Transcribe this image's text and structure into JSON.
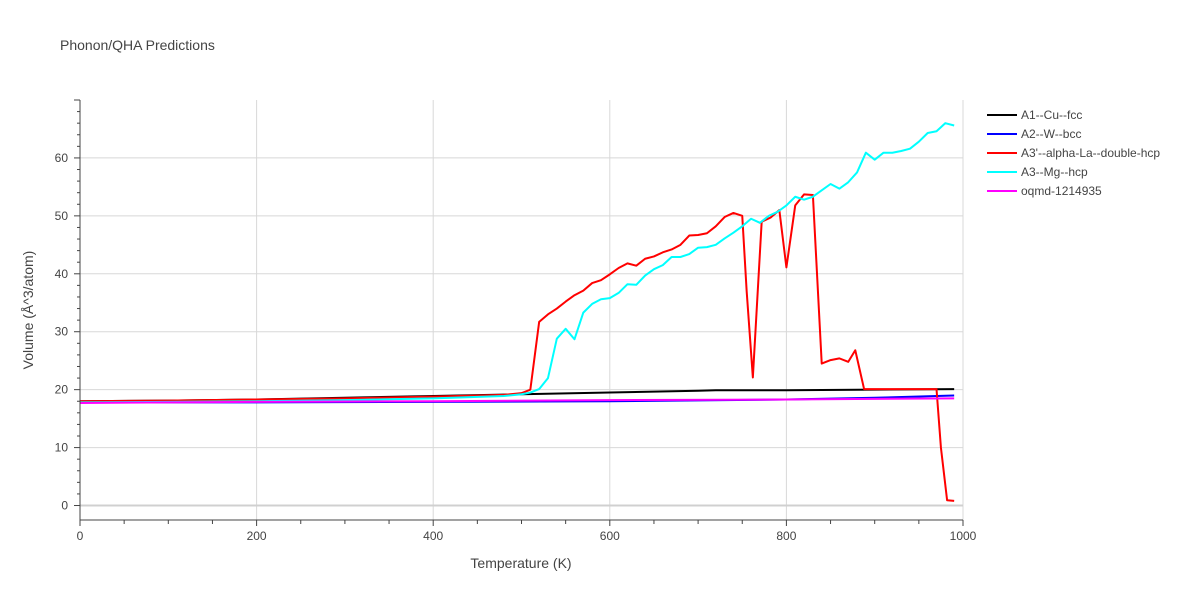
{
  "chart_data": {
    "type": "line",
    "title": "Phonon/QHA Predictions",
    "xlabel": "Temperature (K)",
    "ylabel": "Volume (Å^3/atom)",
    "xlim": [
      0,
      1000
    ],
    "ylim": [
      -2.5,
      70
    ],
    "xticks": [
      0,
      200,
      400,
      600,
      800,
      1000
    ],
    "yticks": [
      0,
      10,
      20,
      30,
      40,
      50,
      60
    ],
    "grid": true,
    "legend_position": "top-right",
    "series": [
      {
        "name": "A1--Cu--fcc",
        "color": "#000000",
        "x": [
          0,
          100,
          200,
          300,
          400,
          500,
          600,
          700,
          720,
          800,
          900,
          990
        ],
        "y": [
          18.0,
          18.1,
          18.3,
          18.6,
          18.9,
          19.2,
          19.5,
          19.8,
          19.9,
          19.9,
          20.0,
          20.1
        ]
      },
      {
        "name": "A2--W--bcc",
        "color": "#0000ff",
        "x": [
          0,
          200,
          400,
          600,
          800,
          900,
          990
        ],
        "y": [
          17.8,
          17.8,
          17.9,
          18.0,
          18.3,
          18.6,
          19.0
        ]
      },
      {
        "name": "A3'--alpha-La--double-hcp",
        "color": "#ff0000",
        "x": [
          0,
          100,
          200,
          300,
          400,
          480,
          500,
          510,
          520,
          530,
          540,
          550,
          560,
          570,
          580,
          590,
          600,
          610,
          620,
          630,
          640,
          650,
          660,
          670,
          680,
          690,
          700,
          710,
          720,
          730,
          740,
          750,
          755,
          762,
          772,
          782,
          792,
          800,
          810,
          820,
          830,
          840,
          850,
          860,
          870,
          878,
          888,
          900,
          920,
          950,
          970,
          975,
          982,
          990
        ],
        "y": [
          18.0,
          18.1,
          18.3,
          18.5,
          18.8,
          19.1,
          19.4,
          20.0,
          31.7,
          33.0,
          34.0,
          35.2,
          36.3,
          37.1,
          38.4,
          38.9,
          39.9,
          41.0,
          41.8,
          41.4,
          42.6,
          43.0,
          43.7,
          44.2,
          45.0,
          46.6,
          46.7,
          47.0,
          48.2,
          49.8,
          50.5,
          50.0,
          37.0,
          22.1,
          49.0,
          49.7,
          51.0,
          41.1,
          51.8,
          53.7,
          53.6,
          24.5,
          25.1,
          25.4,
          24.8,
          26.8,
          20.1,
          20.1,
          20.1,
          20.1,
          20.1,
          10.0,
          0.9,
          0.8
        ]
      },
      {
        "name": "A3--Mg--hcp",
        "color": "#00ffff",
        "x": [
          0,
          100,
          200,
          300,
          400,
          480,
          500,
          510,
          520,
          530,
          540,
          550,
          560,
          570,
          580,
          590,
          600,
          610,
          620,
          630,
          640,
          650,
          660,
          670,
          680,
          690,
          700,
          710,
          720,
          730,
          740,
          750,
          760,
          770,
          780,
          790,
          800,
          810,
          820,
          830,
          840,
          850,
          860,
          870,
          880,
          890,
          900,
          910,
          920,
          930,
          940,
          950,
          960,
          970,
          980,
          990
        ],
        "y": [
          17.8,
          17.9,
          18.0,
          18.2,
          18.5,
          18.9,
          19.2,
          19.5,
          20.1,
          22.0,
          28.8,
          30.5,
          28.7,
          33.3,
          34.8,
          35.6,
          35.8,
          36.7,
          38.2,
          38.1,
          39.7,
          40.8,
          41.5,
          42.9,
          42.9,
          43.4,
          44.5,
          44.6,
          45.0,
          46.1,
          47.1,
          48.2,
          49.5,
          48.8,
          50.0,
          50.7,
          51.8,
          53.3,
          52.8,
          53.3,
          54.4,
          55.5,
          54.7,
          55.8,
          57.5,
          60.9,
          59.7,
          60.9,
          60.9,
          61.2,
          61.6,
          62.8,
          64.3,
          64.6,
          66.0,
          65.6
        ]
      },
      {
        "name": "oqmd-1214935",
        "color": "#ff00ff",
        "x": [
          0,
          200,
          400,
          600,
          800,
          990
        ],
        "y": [
          17.7,
          17.9,
          18.0,
          18.2,
          18.3,
          18.5
        ]
      }
    ]
  }
}
